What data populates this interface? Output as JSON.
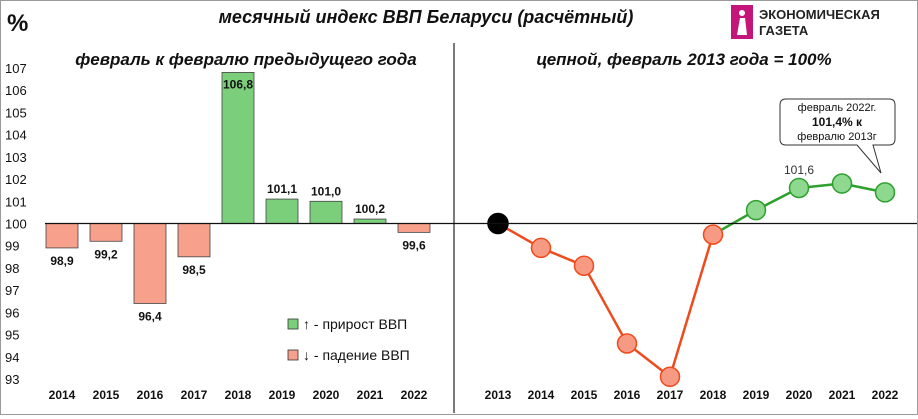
{
  "header": {
    "unit": "%",
    "title": "месячный  индекс ВВП  Беларуси (расчётный)",
    "logo_line1": "ЭКОНОМИЧЕСКАЯ",
    "logo_line2": "ГАЗЕТА"
  },
  "colors": {
    "growth": "#7bcf7b",
    "decline": "#f7a08c",
    "line_decline": "#ee4a1c",
    "line_growth": "#2ea02e",
    "base_point": "#000000",
    "logo_accent": "#c4167a"
  },
  "legend": {
    "growth_label": "↑ - прирост ВВП",
    "decline_label": "↓ - падение ВВП"
  },
  "annotation": {
    "line1": "февраль 2022г.",
    "line2": "101,4%  к",
    "line3": "февралю 2013г"
  },
  "chart_data": [
    {
      "type": "bar",
      "title": "февраль к февралю предыдущего года",
      "categories": [
        "2014",
        "2015",
        "2016",
        "2017",
        "2018",
        "2019",
        "2020",
        "2021",
        "2022"
      ],
      "values": [
        98.9,
        99.2,
        96.4,
        98.5,
        106.8,
        101.1,
        101.0,
        100.2,
        99.6
      ],
      "labels": [
        "98,9",
        "99,2",
        "96,4",
        "98,5",
        "106,8",
        "101,1",
        "101,0",
        "100,2",
        "99,6"
      ],
      "baseline": 100,
      "ylim": [
        93,
        107
      ],
      "yticks": [
        "93",
        "94",
        "95",
        "96",
        "97",
        "98",
        "99",
        "100",
        "101",
        "102",
        "103",
        "104",
        "105",
        "106",
        "107"
      ],
      "grid": false
    },
    {
      "type": "line",
      "title": "цепной, февраль 2013 года = 100%",
      "categories": [
        "2013",
        "2014",
        "2015",
        "2016",
        "2017",
        "2018",
        "2019",
        "2020",
        "2021",
        "2022"
      ],
      "values": [
        100.0,
        98.9,
        98.1,
        94.6,
        93.1,
        99.5,
        100.6,
        101.6,
        101.8,
        101.4
      ],
      "point_label": "101,6",
      "baseline": 100,
      "ylim": [
        93,
        107
      ]
    }
  ]
}
